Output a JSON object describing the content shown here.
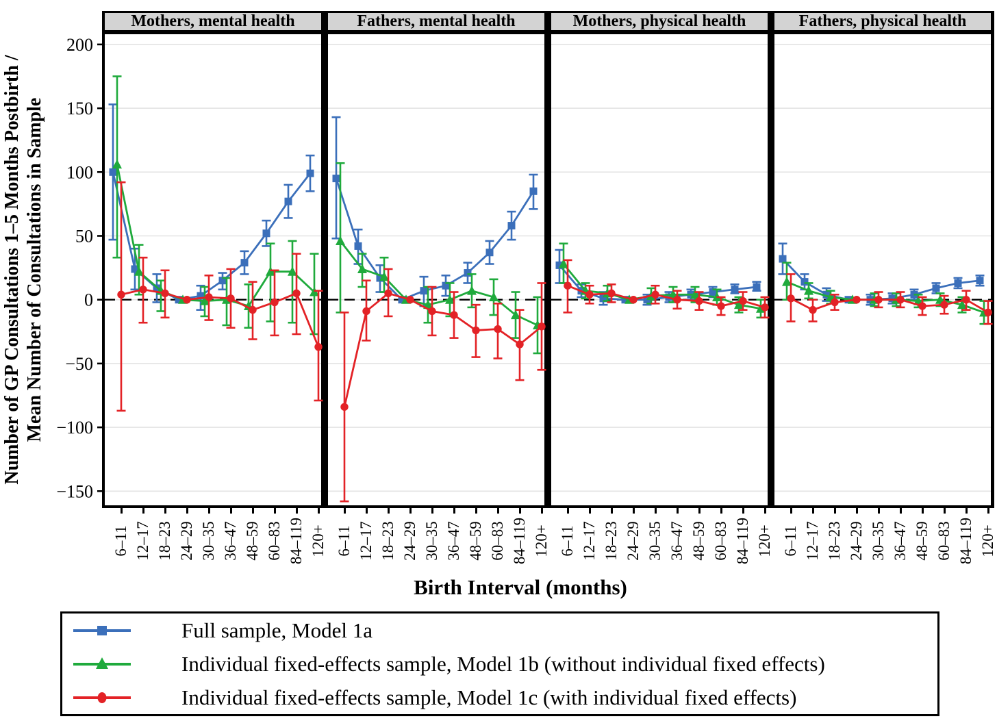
{
  "figure": {
    "y_axis_title_line1": "Number of GP Consultations 1–5 Months Postbirth /",
    "y_axis_title_line2": "Mean Number of Consultations in Sample",
    "x_axis_title": "Birth Interval (months)"
  },
  "colors": {
    "blue": "#3b6fba",
    "green": "#1faa3c",
    "red": "#e32226",
    "grid": "#e3e3e3",
    "header_bg": "#d3d3d3",
    "border": "#000000"
  },
  "legend": {
    "items": [
      {
        "label": "Full sample, Model 1a",
        "color_key": "blue",
        "marker": "square"
      },
      {
        "label": "Individual fixed-effects sample, Model 1b (without individual fixed effects)",
        "color_key": "green",
        "marker": "triangle"
      },
      {
        "label": "Individual fixed-effects sample, Model 1c (with individual fixed effects)",
        "color_key": "red",
        "marker": "circle"
      }
    ]
  },
  "chart_data": {
    "type": "line",
    "x_categories": [
      "6–11",
      "12–17",
      "18–23",
      "24–29",
      "30–35",
      "36–47",
      "48–59",
      "60–83",
      "84–119",
      "120+"
    ],
    "y_ticks": [
      200,
      150,
      100,
      50,
      0,
      -50,
      -100,
      -150
    ],
    "y_range": [
      -161,
      208
    ],
    "grid": true,
    "zero_reference_line": true,
    "legend_position": "bottom",
    "panels": [
      {
        "title": "Mothers, mental health",
        "series": [
          {
            "name": "Full sample, Model 1a",
            "color_key": "blue",
            "marker": "square",
            "values": [
              100,
              24,
              9,
              0,
              3,
              15,
              29,
              52,
              77,
              99
            ],
            "ci_low": [
              47,
              8,
              -2,
              0,
              -8,
              8,
              20,
              42,
              64,
              85
            ],
            "ci_high": [
              153,
              40,
              20,
              0,
              11,
              21,
              38,
              62,
              90,
              113
            ]
          },
          {
            "name": "Individual fixed-effects sample, Model 1b (without individual fixed effects)",
            "color_key": "green",
            "marker": "triangle",
            "values": [
              106,
              22,
              7,
              0,
              -1,
              0,
              -5,
              22,
              22,
              6
            ],
            "ci_low": [
              33,
              4,
              -9,
              0,
              -13,
              -20,
              -22,
              -17,
              -18,
              -27
            ],
            "ci_high": [
              175,
              43,
              15,
              0,
              10,
              17,
              12,
              44,
              46,
              36
            ]
          },
          {
            "name": "Individual fixed-effects sample, Model 1c (with individual fixed effects)",
            "color_key": "red",
            "marker": "circle",
            "values": [
              4,
              8,
              5,
              0,
              2,
              1,
              -8,
              -2,
              5,
              -37
            ],
            "ci_low": [
              -87,
              -18,
              -14,
              0,
              -16,
              -22,
              -31,
              -28,
              -27,
              -79
            ],
            "ci_high": [
              92,
              33,
              23,
              0,
              19,
              24,
              14,
              23,
              36,
              7
            ]
          }
        ]
      },
      {
        "title": "Fathers, mental health",
        "series": [
          {
            "name": "Full sample, Model 1a",
            "color_key": "blue",
            "marker": "square",
            "values": [
              95,
              42,
              17,
              0,
              7,
              11,
              21,
              37,
              58,
              85
            ],
            "ci_low": [
              48,
              28,
              6,
              0,
              -5,
              3,
              13,
              28,
              47,
              71
            ],
            "ci_high": [
              143,
              55,
              27,
              0,
              18,
              19,
              29,
              46,
              69,
              98
            ]
          },
          {
            "name": "Individual fixed-effects sample, Model 1b (without individual fixed effects)",
            "color_key": "green",
            "marker": "triangle",
            "values": [
              46,
              24,
              18,
              0,
              -4,
              0,
              7,
              2,
              -12,
              -20
            ],
            "ci_low": [
              -10,
              10,
              6,
              0,
              -18,
              -13,
              -6,
              -12,
              -30,
              -42
            ],
            "ci_high": [
              107,
              36,
              33,
              0,
              10,
              13,
              20,
              16,
              6,
              2
            ]
          },
          {
            "name": "Individual fixed-effects sample, Model 1c (with individual fixed effects)",
            "color_key": "red",
            "marker": "circle",
            "values": [
              -84,
              -9,
              5,
              0,
              -9,
              -12,
              -24,
              -23,
              -35,
              -21
            ],
            "ci_low": [
              -158,
              -32,
              -13,
              0,
              -28,
              -30,
              -45,
              -46,
              -63,
              -55
            ],
            "ci_high": [
              -10,
              15,
              24,
              0,
              10,
              6,
              -4,
              -3,
              -8,
              13
            ]
          }
        ]
      },
      {
        "title": "Mothers, physical health",
        "series": [
          {
            "name": "Full sample, Model 1a",
            "color_key": "blue",
            "marker": "square",
            "values": [
              27,
              7,
              1,
              0,
              0,
              2,
              4,
              6,
              8,
              10
            ],
            "ci_low": [
              13,
              2,
              -4,
              0,
              -4,
              -2,
              0,
              2,
              5,
              7
            ],
            "ci_high": [
              39,
              12,
              6,
              0,
              4,
              6,
              8,
              10,
              12,
              14
            ]
          },
          {
            "name": "Individual fixed-effects sample, Model 1b (without individual fixed effects)",
            "color_key": "green",
            "marker": "triangle",
            "values": [
              28,
              7,
              5,
              0,
              3,
              4,
              4,
              2,
              -4,
              -7
            ],
            "ci_low": [
              13,
              1,
              -1,
              0,
              -3,
              -2,
              -2,
              -4,
              -10,
              -14
            ],
            "ci_high": [
              44,
              13,
              11,
              0,
              9,
              10,
              10,
              8,
              2,
              0
            ]
          },
          {
            "name": "Individual fixed-effects sample, Model 1c (with individual fixed effects)",
            "color_key": "red",
            "marker": "circle",
            "values": [
              11,
              4,
              5,
              0,
              4,
              0,
              -1,
              -5,
              -1,
              -6
            ],
            "ci_low": [
              -10,
              -3,
              -2,
              0,
              -3,
              -7,
              -8,
              -12,
              -8,
              -14
            ],
            "ci_high": [
              31,
              11,
              12,
              0,
              11,
              7,
              6,
              2,
              6,
              2
            ]
          }
        ]
      },
      {
        "title": "Fathers, physical health",
        "series": [
          {
            "name": "Full sample, Model 1a",
            "color_key": "blue",
            "marker": "square",
            "values": [
              32,
              14,
              4,
              0,
              0,
              1,
              4,
              9,
              13,
              15
            ],
            "ci_low": [
              20,
              8,
              -1,
              0,
              -4,
              -3,
              0,
              5,
              9,
              11
            ],
            "ci_high": [
              44,
              20,
              9,
              0,
              4,
              5,
              8,
              13,
              17,
              19
            ]
          },
          {
            "name": "Individual fixed-effects sample, Model 1b (without individual fixed effects)",
            "color_key": "green",
            "marker": "triangle",
            "values": [
              14,
              7,
              2,
              0,
              0,
              0,
              -1,
              0,
              -4,
              -10
            ],
            "ci_low": [
              0,
              1,
              -3,
              0,
              -5,
              -5,
              -6,
              -5,
              -10,
              -19
            ],
            "ci_high": [
              29,
              13,
              7,
              0,
              5,
              5,
              4,
              5,
              2,
              -1
            ]
          },
          {
            "name": "Individual fixed-effects sample, Model 1c (with individual fixed effects)",
            "color_key": "red",
            "marker": "circle",
            "values": [
              1,
              -8,
              -2,
              0,
              0,
              0,
              -5,
              -4,
              0,
              -10
            ],
            "ci_low": [
              -17,
              -17,
              -8,
              0,
              -6,
              -6,
              -12,
              -11,
              -8,
              -19
            ],
            "ci_high": [
              20,
              0,
              4,
              0,
              6,
              6,
              2,
              3,
              7,
              -1
            ]
          }
        ]
      }
    ]
  }
}
